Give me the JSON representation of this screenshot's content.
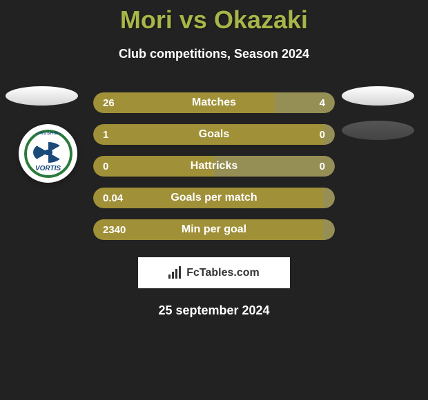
{
  "title": "Mori vs Okazaki",
  "subtitle": "Club competitions, Season 2024",
  "date": "25 september 2024",
  "footer_brand": "FcTables.com",
  "colors": {
    "title_color": "#a8b548",
    "background": "#222222",
    "bar_dominant": "#a09037",
    "bar_minor": "#968f55",
    "text_white": "#ffffff"
  },
  "badge": {
    "top_text": "TOKUSHIMA",
    "name_text": "VORTIS",
    "ring_color": "#2a7a3a",
    "text_color": "#1a4a7a"
  },
  "stats": [
    {
      "label": "Matches",
      "left_value": "26",
      "right_value": "4",
      "left_pct": 75,
      "right_pct": 25,
      "left_color": "#a09037",
      "right_color": "#968f55"
    },
    {
      "label": "Goals",
      "left_value": "1",
      "right_value": "0",
      "left_pct": 95,
      "right_pct": 5,
      "left_color": "#a09037",
      "right_color": "#968f55"
    },
    {
      "label": "Hattricks",
      "left_value": "0",
      "right_value": "0",
      "left_pct": 50,
      "right_pct": 50,
      "left_color": "#a09037",
      "right_color": "#968f55"
    },
    {
      "label": "Goals per match",
      "left_value": "0.04",
      "right_value": "",
      "left_pct": 95,
      "right_pct": 5,
      "left_color": "#a09037",
      "right_color": "#968f55"
    },
    {
      "label": "Min per goal",
      "left_value": "2340",
      "right_value": "",
      "left_pct": 95,
      "right_pct": 5,
      "left_color": "#a09037",
      "right_color": "#968f55"
    }
  ]
}
